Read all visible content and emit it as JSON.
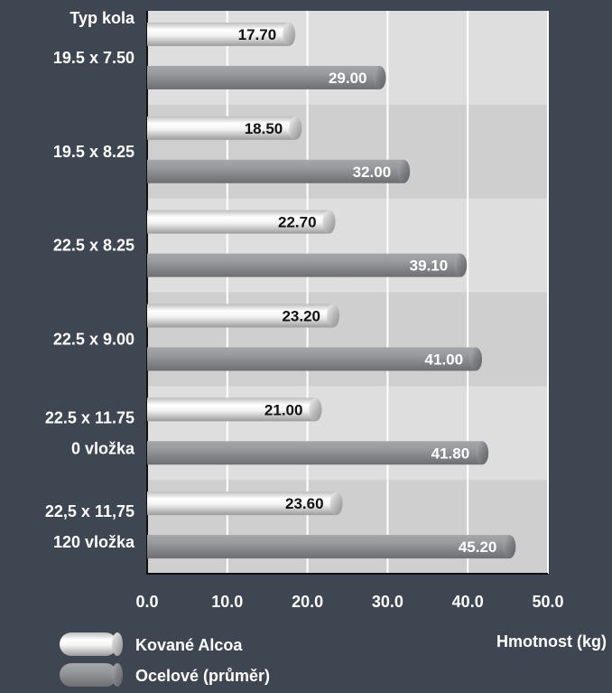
{
  "chart_data": {
    "type": "bar",
    "orientation": "horizontal",
    "category_axis_title": "Typ kola",
    "categories": [
      [
        "19.5 x 7.50"
      ],
      [
        "19.5 x 8.25"
      ],
      [
        "22.5 x 8.25"
      ],
      [
        "22.5 x 9.00"
      ],
      [
        "22.5 x 11.75",
        "0 vložka"
      ],
      [
        "22,5 x 11,75",
        "120 vložka"
      ]
    ],
    "series": [
      {
        "name": "Kované Alcoa",
        "color": "#e4e4e4",
        "values": [
          17.7,
          18.5,
          22.7,
          23.2,
          21.0,
          23.6
        ]
      },
      {
        "name": "Ocelové (průměr)",
        "color": "#8a8c90",
        "values": [
          29.0,
          32.0,
          39.1,
          41.0,
          41.8,
          45.2
        ]
      }
    ],
    "value_labels": [
      [
        "17.70",
        "18.50",
        "22.70",
        "23.20",
        "21.00",
        "23.60"
      ],
      [
        "29.00",
        "32.00",
        "39.10",
        "41.00",
        "41.80",
        "45.20"
      ]
    ],
    "xlabel": "Hmotnost (kg)",
    "xlim": [
      0,
      50
    ],
    "xticks": [
      "0.0",
      "10.0",
      "20.0",
      "30.0",
      "40.0",
      "50.0"
    ],
    "grid": true,
    "legend_position": "bottom-left"
  },
  "colors": {
    "background": "#3e4651",
    "plot_band_light": "#dedede",
    "plot_band_dark": "#cfcfcf",
    "text": "#ffffff",
    "label_dark": "#111111"
  }
}
